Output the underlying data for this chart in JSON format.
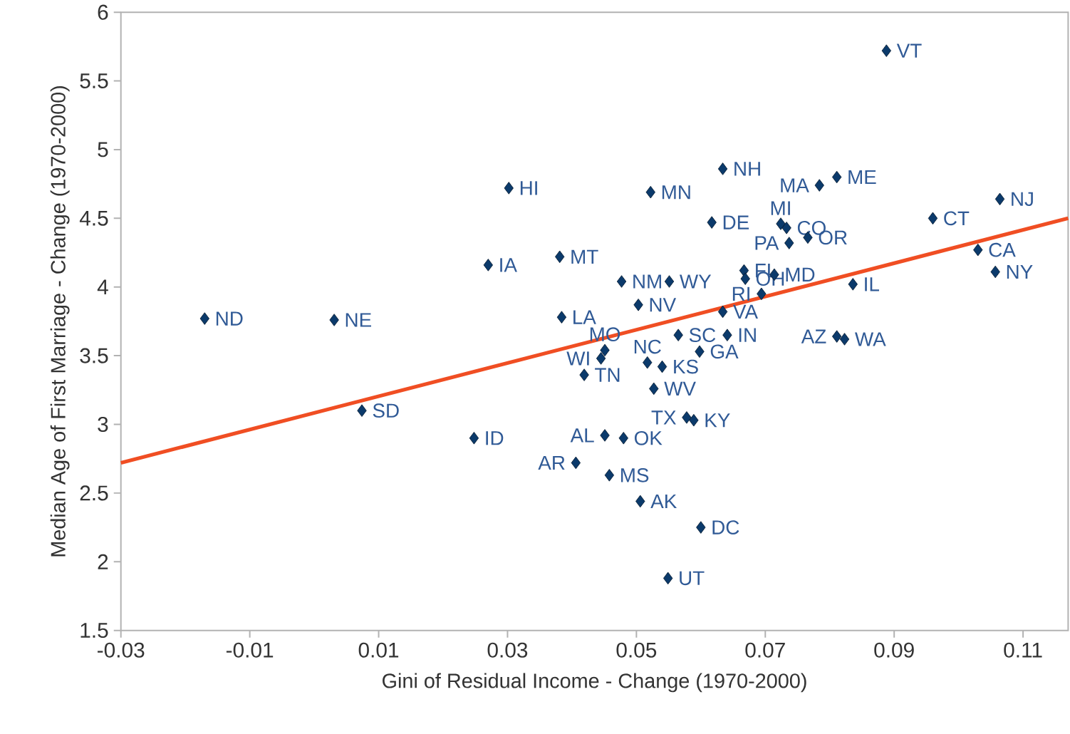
{
  "chart_data": {
    "type": "scatter",
    "xlabel": "Gini of Residual Income - Change (1970-2000)",
    "ylabel": "Median Age of First Marriage - Change (1970-2000)",
    "xlim": [
      -0.03,
      0.117
    ],
    "ylim": [
      1.5,
      6
    ],
    "xticks": [
      -0.03,
      -0.01,
      0.01,
      0.03,
      0.05,
      0.07,
      0.09,
      0.11
    ],
    "yticks": [
      1.5,
      2,
      2.5,
      3,
      3.5,
      4,
      4.5,
      5,
      5.5,
      6
    ],
    "series": [
      {
        "marker": "diamond",
        "color": "#0b3a6b",
        "x": [
          -0.017,
          0.0031,
          0.0074,
          0.0248,
          0.027,
          0.0302,
          0.0381,
          0.0384,
          0.0477,
          0.0551,
          0.0503,
          0.0522,
          0.0634,
          0.0617,
          0.0811,
          0.0784,
          0.0724,
          0.0733,
          0.0737,
          0.0766,
          0.0667,
          0.0669,
          0.0714,
          0.0694,
          0.0836,
          0.0634,
          0.0565,
          0.0641,
          0.0811,
          0.0823,
          0.0598,
          0.0451,
          0.0445,
          0.0517,
          0.054,
          0.0419,
          0.0527,
          0.0578,
          0.0589,
          0.0451,
          0.048,
          0.0406,
          0.0458,
          0.0506,
          0.06,
          0.0549,
          0.0888,
          0.096,
          0.1064,
          0.103,
          0.1057
        ],
        "values": [
          3.77,
          3.76,
          3.1,
          2.9,
          4.16,
          4.72,
          4.22,
          3.78,
          4.04,
          4.04,
          3.87,
          4.69,
          4.86,
          4.47,
          4.8,
          4.74,
          4.46,
          4.43,
          4.32,
          4.36,
          4.12,
          4.06,
          4.09,
          3.95,
          4.02,
          3.82,
          3.65,
          3.65,
          3.64,
          3.62,
          3.53,
          3.54,
          3.48,
          3.45,
          3.42,
          3.36,
          3.26,
          3.05,
          3.03,
          2.92,
          2.9,
          2.72,
          2.63,
          2.44,
          2.25,
          1.88,
          5.72,
          4.5,
          4.64,
          4.27,
          4.11
        ]
      },
      {
        "type": "line",
        "marker": "none",
        "color": "#f04e23",
        "x": [
          -0.03,
          0.117
        ],
        "values": [
          2.72,
          4.5
        ]
      }
    ],
    "annotations": [
      {
        "text": "ND",
        "x": -0.017,
        "y": 3.77
      },
      {
        "text": "NE",
        "x": 0.0031,
        "y": 3.76
      },
      {
        "text": "SD",
        "x": 0.0074,
        "y": 3.1
      },
      {
        "text": "ID",
        "x": 0.0248,
        "y": 2.9
      },
      {
        "text": "IA",
        "x": 0.027,
        "y": 4.16
      },
      {
        "text": "HI",
        "x": 0.0302,
        "y": 4.72
      },
      {
        "text": "MT",
        "x": 0.0381,
        "y": 4.22
      },
      {
        "text": "LA",
        "x": 0.0384,
        "y": 3.78
      },
      {
        "text": "NM",
        "x": 0.0477,
        "y": 4.04
      },
      {
        "text": "WY",
        "x": 0.0551,
        "y": 4.04
      },
      {
        "text": "NV",
        "x": 0.0503,
        "y": 3.87
      },
      {
        "text": "MN",
        "x": 0.0522,
        "y": 4.69
      },
      {
        "text": "NH",
        "x": 0.0634,
        "y": 4.86
      },
      {
        "text": "DE",
        "x": 0.0617,
        "y": 4.47
      },
      {
        "text": "ME",
        "x": 0.0811,
        "y": 4.8
      },
      {
        "text": "MA",
        "x": 0.0784,
        "y": 4.74
      },
      {
        "text": "MI",
        "x": 0.0724,
        "y": 4.46
      },
      {
        "text": "CO",
        "x": 0.0733,
        "y": 4.43
      },
      {
        "text": "PA",
        "x": 0.0737,
        "y": 4.32
      },
      {
        "text": "OR",
        "x": 0.0766,
        "y": 4.36
      },
      {
        "text": "FL",
        "x": 0.0667,
        "y": 4.12
      },
      {
        "text": "OH",
        "x": 0.0669,
        "y": 4.06
      },
      {
        "text": "MD",
        "x": 0.0714,
        "y": 4.09
      },
      {
        "text": "RI",
        "x": 0.0694,
        "y": 3.95
      },
      {
        "text": "IL",
        "x": 0.0836,
        "y": 4.02
      },
      {
        "text": "VA",
        "x": 0.0634,
        "y": 3.82
      },
      {
        "text": "SC",
        "x": 0.0565,
        "y": 3.65
      },
      {
        "text": "IN",
        "x": 0.0641,
        "y": 3.65
      },
      {
        "text": "AZ",
        "x": 0.0811,
        "y": 3.64
      },
      {
        "text": "WA",
        "x": 0.0823,
        "y": 3.62
      },
      {
        "text": "GA",
        "x": 0.0598,
        "y": 3.53
      },
      {
        "text": "MO",
        "x": 0.0451,
        "y": 3.54
      },
      {
        "text": "WI",
        "x": 0.0445,
        "y": 3.48
      },
      {
        "text": "NC",
        "x": 0.0517,
        "y": 3.45
      },
      {
        "text": "KS",
        "x": 0.054,
        "y": 3.42
      },
      {
        "text": "TN",
        "x": 0.0419,
        "y": 3.36
      },
      {
        "text": "WV",
        "x": 0.0527,
        "y": 3.26
      },
      {
        "text": "TX",
        "x": 0.0578,
        "y": 3.05
      },
      {
        "text": "KY",
        "x": 0.0589,
        "y": 3.03
      },
      {
        "text": "AL",
        "x": 0.0451,
        "y": 2.92
      },
      {
        "text": "OK",
        "x": 0.048,
        "y": 2.9
      },
      {
        "text": "AR",
        "x": 0.0406,
        "y": 2.72
      },
      {
        "text": "MS",
        "x": 0.0458,
        "y": 2.63
      },
      {
        "text": "AK",
        "x": 0.0506,
        "y": 2.44
      },
      {
        "text": "DC",
        "x": 0.06,
        "y": 2.25
      },
      {
        "text": "UT",
        "x": 0.0549,
        "y": 1.88
      },
      {
        "text": "VT",
        "x": 0.0888,
        "y": 5.72
      },
      {
        "text": "CT",
        "x": 0.096,
        "y": 4.5
      },
      {
        "text": "NJ",
        "x": 0.1064,
        "y": 4.64
      },
      {
        "text": "CA",
        "x": 0.103,
        "y": 4.27
      },
      {
        "text": "NY",
        "x": 0.1057,
        "y": 4.11
      }
    ]
  }
}
